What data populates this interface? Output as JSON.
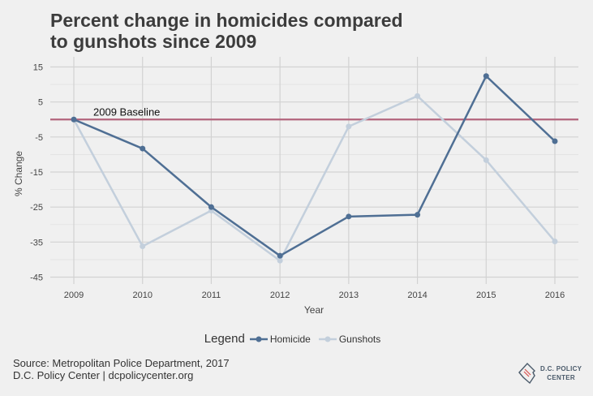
{
  "chart_data": {
    "type": "line",
    "title_line1": "Percent change in homicides compared",
    "title_line2": "to gunshots since 2009",
    "xlabel": "Year",
    "ylabel": "% Change",
    "x": [
      2009,
      2010,
      2011,
      2012,
      2013,
      2014,
      2015,
      2016
    ],
    "yticks": [
      15,
      5,
      -5,
      -15,
      -25,
      -35,
      -45
    ],
    "ylim": [
      -46,
      18
    ],
    "grid": true,
    "series": [
      {
        "name": "Homicide",
        "color": "#4f6f94",
        "values": [
          0,
          -8.3,
          -25,
          -38.9,
          -27.7,
          -27.2,
          12.4,
          -6.2
        ]
      },
      {
        "name": "Gunshots",
        "color": "#c3cfdc",
        "values": [
          0,
          -36.2,
          -26,
          -40.3,
          -2,
          6.7,
          -11.6,
          -34.8
        ]
      }
    ],
    "baseline": {
      "value": 0,
      "label": "2009 Baseline",
      "color": "#b3647c"
    },
    "legend": {
      "title": "Legend",
      "placement": "bottom"
    }
  },
  "footer": {
    "source_line1": "Source: Metropolitan Police Department, 2017",
    "source_line2": "D.C. Policy Center | dcpolicycenter.org"
  },
  "logo": {
    "line1": "D.C. POLICY",
    "line2": "CENTER",
    "icon": "dc-map-icon"
  }
}
